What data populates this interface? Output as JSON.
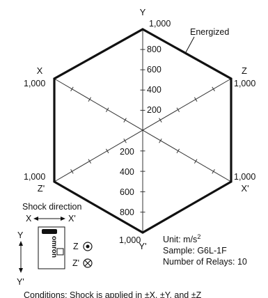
{
  "diagram": {
    "axes": {
      "y_top": "Y",
      "y_bottom": "Y'",
      "x_left": "X",
      "x_right": "X'",
      "z_upper_right": "Z",
      "z_lower_left": "Z'"
    },
    "max_label": "1,000",
    "tick_values": [
      "200",
      "400",
      "600",
      "800"
    ],
    "series_label": "Energized",
    "colors": {
      "outline": "#111111",
      "axes": "#333333",
      "text": "#111111"
    }
  },
  "inset": {
    "title": "Shock direction",
    "x_label": "X",
    "x_prime_label": "X'",
    "y_label": "Y",
    "y_prime_label": "Y'",
    "z_label": "Z",
    "z_prime_label": "Z'",
    "brand": "omron",
    "z_symbol_icon": "dot-in-circle-icon",
    "z_prime_symbol_icon": "cross-in-circle-icon"
  },
  "info": {
    "unit_prefix": "Unit: m/s",
    "unit_superscript": "2",
    "sample": "Sample: G6L-1F",
    "relays": "Number of Relays: 10"
  },
  "footer": {
    "conditions": "Conditions: Shock is applied in ±X, ±Y, and ±Z"
  }
}
